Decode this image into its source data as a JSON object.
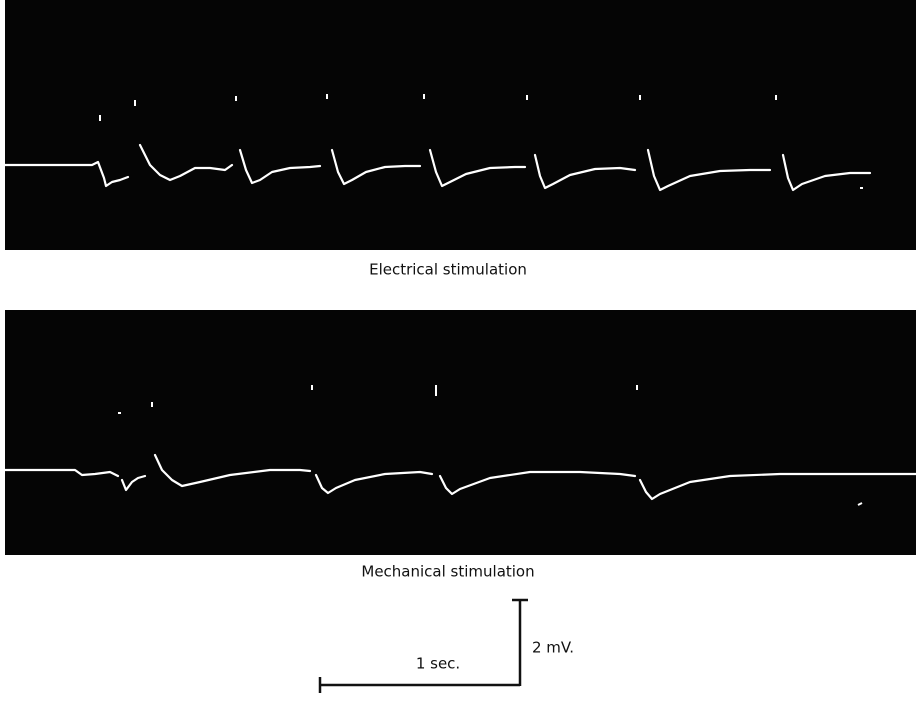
{
  "panels": [
    {
      "caption": "Electrical stimulation"
    },
    {
      "caption": "Mechanical stimulation"
    }
  ],
  "scale_bar": {
    "voltage": "2 mV.",
    "time": "1 sec."
  }
}
